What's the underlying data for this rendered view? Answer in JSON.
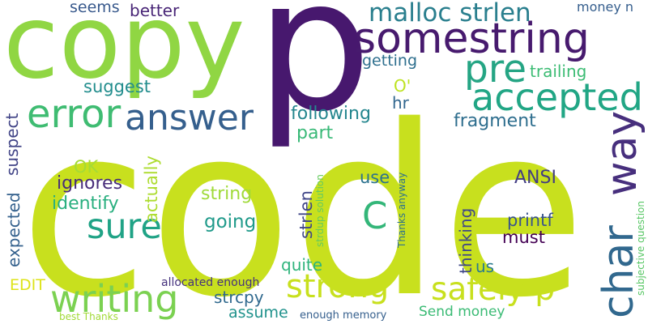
{
  "words": [
    {
      "text": "code",
      "color": "#c8e01e"
    },
    {
      "text": "p",
      "color": "#47186e"
    },
    {
      "text": "copy",
      "color": "#90d643"
    },
    {
      "text": "somestring",
      "color": "#471a6e"
    },
    {
      "text": "malloc strlen",
      "color": "#2a7f8e"
    },
    {
      "text": "pre",
      "color": "#25a584"
    },
    {
      "text": "accepted",
      "color": "#21a685"
    },
    {
      "text": "error",
      "color": "#3fbc72"
    },
    {
      "text": "answer",
      "color": "#355f8d"
    },
    {
      "text": "way",
      "color": "#472f7d"
    },
    {
      "text": "char",
      "color": "#31688e"
    },
    {
      "text": "strong",
      "color": "#c8e01e"
    },
    {
      "text": "safely p",
      "color": "#c8e01e"
    },
    {
      "text": "writing",
      "color": "#7bd151"
    },
    {
      "text": "sure",
      "color": "#20a386"
    },
    {
      "text": "C",
      "color": "#34b679"
    },
    {
      "text": "seems",
      "color": "#38598c"
    },
    {
      "text": "better",
      "color": "#482576"
    },
    {
      "text": "money n",
      "color": "#355e8d"
    },
    {
      "text": "getting",
      "color": "#2e6f8e"
    },
    {
      "text": "trailing",
      "color": "#3cbc74"
    },
    {
      "text": "suggest",
      "color": "#228d8d"
    },
    {
      "text": "O'",
      "color": "#bde320"
    },
    {
      "text": "hr",
      "color": "#31668e"
    },
    {
      "text": "following",
      "color": "#24868e"
    },
    {
      "text": "fragment",
      "color": "#2e6e8e"
    },
    {
      "text": "part",
      "color": "#38b977"
    },
    {
      "text": "suspect",
      "color": "#414487"
    },
    {
      "text": "OK",
      "color": "#a5db36"
    },
    {
      "text": "ignores",
      "color": "#472c7a"
    },
    {
      "text": "identify",
      "color": "#29af7f"
    },
    {
      "text": "actually",
      "color": "#addc30"
    },
    {
      "text": "use",
      "color": "#2c728e"
    },
    {
      "text": "ANSI",
      "color": "#433d84"
    },
    {
      "text": "string",
      "color": "#a0da39"
    },
    {
      "text": "going",
      "color": "#1f9a8a"
    },
    {
      "text": "expected",
      "color": "#34618d"
    },
    {
      "text": "strlen",
      "color": "#404688"
    },
    {
      "text": "thinking",
      "color": "#3f4788"
    },
    {
      "text": "printf",
      "color": "#3a548c"
    },
    {
      "text": "must",
      "color": "#440154"
    },
    {
      "text": "EDIT",
      "color": "#dde318"
    },
    {
      "text": "quite",
      "color": "#2fb47c"
    },
    {
      "text": "us",
      "color": "#297b8e"
    },
    {
      "text": "strcpy",
      "color": "#30698e"
    },
    {
      "text": "assume",
      "color": "#20928c"
    },
    {
      "text": "allocated enough",
      "color": "#46327e"
    },
    {
      "text": "enough memory",
      "color": "#355f8d"
    },
    {
      "text": "Send money",
      "color": "#3bbb75"
    },
    {
      "text": "best Thanks",
      "color": "#a2da37"
    },
    {
      "text": "strdup solution",
      "color": "#65cb5e"
    },
    {
      "text": "Thanks anyway",
      "color": "#2d718e"
    },
    {
      "text": "subjective question",
      "color": "#58c765"
    }
  ]
}
